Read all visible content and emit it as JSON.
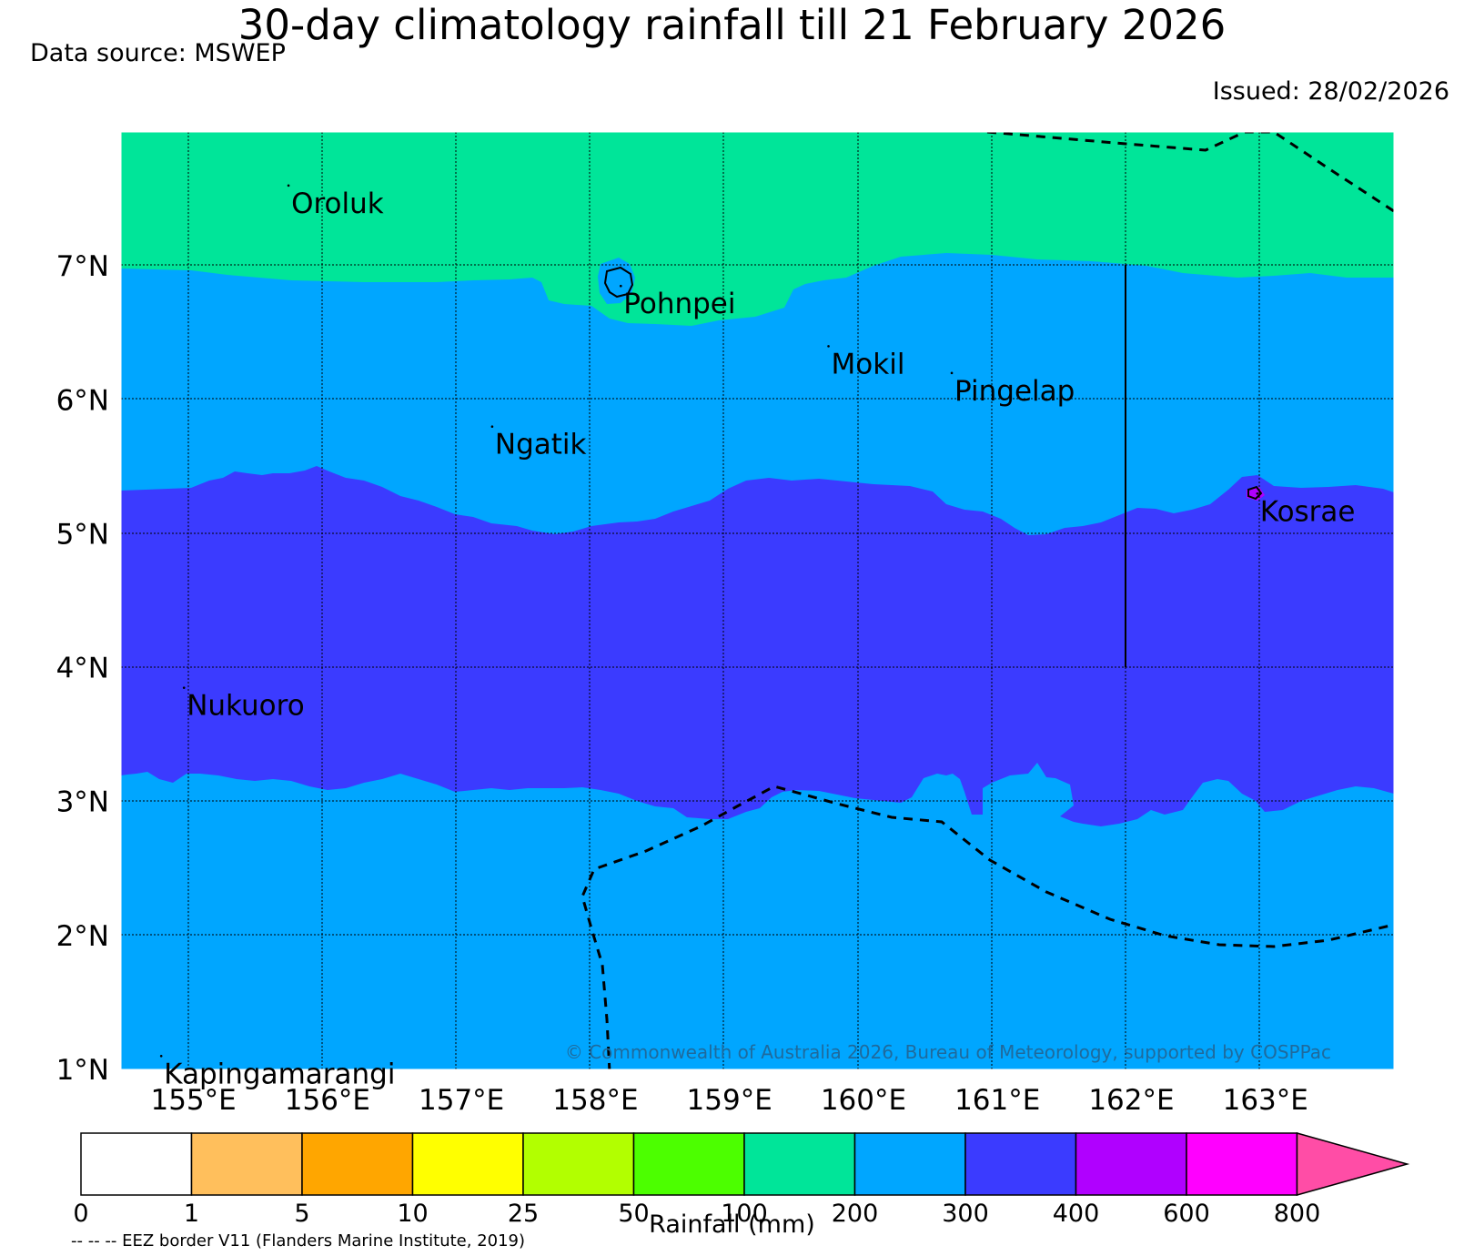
{
  "header": {
    "title": "30-day climatology rainfall till 21 February 2026",
    "source": "Data source: MSWEP",
    "issued": "Issued: 28/02/2026"
  },
  "map": {
    "lon_range": [
      154.5,
      164
    ],
    "lat_range": [
      1,
      8
    ],
    "lat_ticks": [
      {
        "value": 7,
        "label": "7°N"
      },
      {
        "value": 6,
        "label": "6°N"
      },
      {
        "value": 5,
        "label": "5°N"
      },
      {
        "value": 4,
        "label": "4°N"
      },
      {
        "value": 3,
        "label": "3°N"
      },
      {
        "value": 2,
        "label": "2°N"
      },
      {
        "value": 1,
        "label": "1°N"
      }
    ],
    "lon_ticks": [
      {
        "value": 155,
        "label": "155°E"
      },
      {
        "value": 156,
        "label": "156°E"
      },
      {
        "value": 157,
        "label": "157°E"
      },
      {
        "value": 158,
        "label": "158°E"
      },
      {
        "value": 159,
        "label": "159°E"
      },
      {
        "value": 160,
        "label": "160°E"
      },
      {
        "value": 161,
        "label": "161°E"
      },
      {
        "value": 162,
        "label": "162°E"
      },
      {
        "value": 163,
        "label": "163°E"
      }
    ],
    "places": [
      {
        "name": "Oroluk",
        "lon": 155.75,
        "lat": 7.6
      },
      {
        "name": "Pohnpei",
        "lon": 158.23,
        "lat": 6.85
      },
      {
        "name": "Mokil",
        "lon": 159.78,
        "lat": 6.4
      },
      {
        "name": "Pingelap",
        "lon": 160.7,
        "lat": 6.2
      },
      {
        "name": "Ngatik",
        "lon": 157.27,
        "lat": 5.8
      },
      {
        "name": "Kosrae",
        "lon": 162.98,
        "lat": 5.3
      },
      {
        "name": "Nukuoro",
        "lon": 154.97,
        "lat": 3.85
      },
      {
        "name": "Kapingamarangi",
        "lon": 154.8,
        "lat": 1.1
      }
    ],
    "copyright": "© Commonwealth of Australia 2026, Bureau of Meteorology, supported by COSPPac",
    "zones": [
      {
        "range_mm": "100-200",
        "color": "#00e599"
      },
      {
        "range_mm": "200-300",
        "color": "#00a6ff"
      },
      {
        "range_mm": "300-400",
        "color": "#3b3bff"
      },
      {
        "range_mm": "400-600",
        "color": "#b000ff"
      }
    ]
  },
  "colorbar": {
    "title": "Rainfall (mm)",
    "ticks": [
      "0",
      "1",
      "5",
      "10",
      "25",
      "50",
      "100",
      "200",
      "300",
      "400",
      "600",
      "800"
    ],
    "colors": [
      "#ffffff",
      "#ffbf5c",
      "#ffa600",
      "#ffff00",
      "#b2ff00",
      "#4cff00",
      "#00e599",
      "#00a6ff",
      "#3b3bff",
      "#b000ff",
      "#ff00ff",
      "#ff4da6"
    ]
  },
  "footnote": "-- -- -- EEZ border V11 (Flanders Marine Institute, 2019)"
}
